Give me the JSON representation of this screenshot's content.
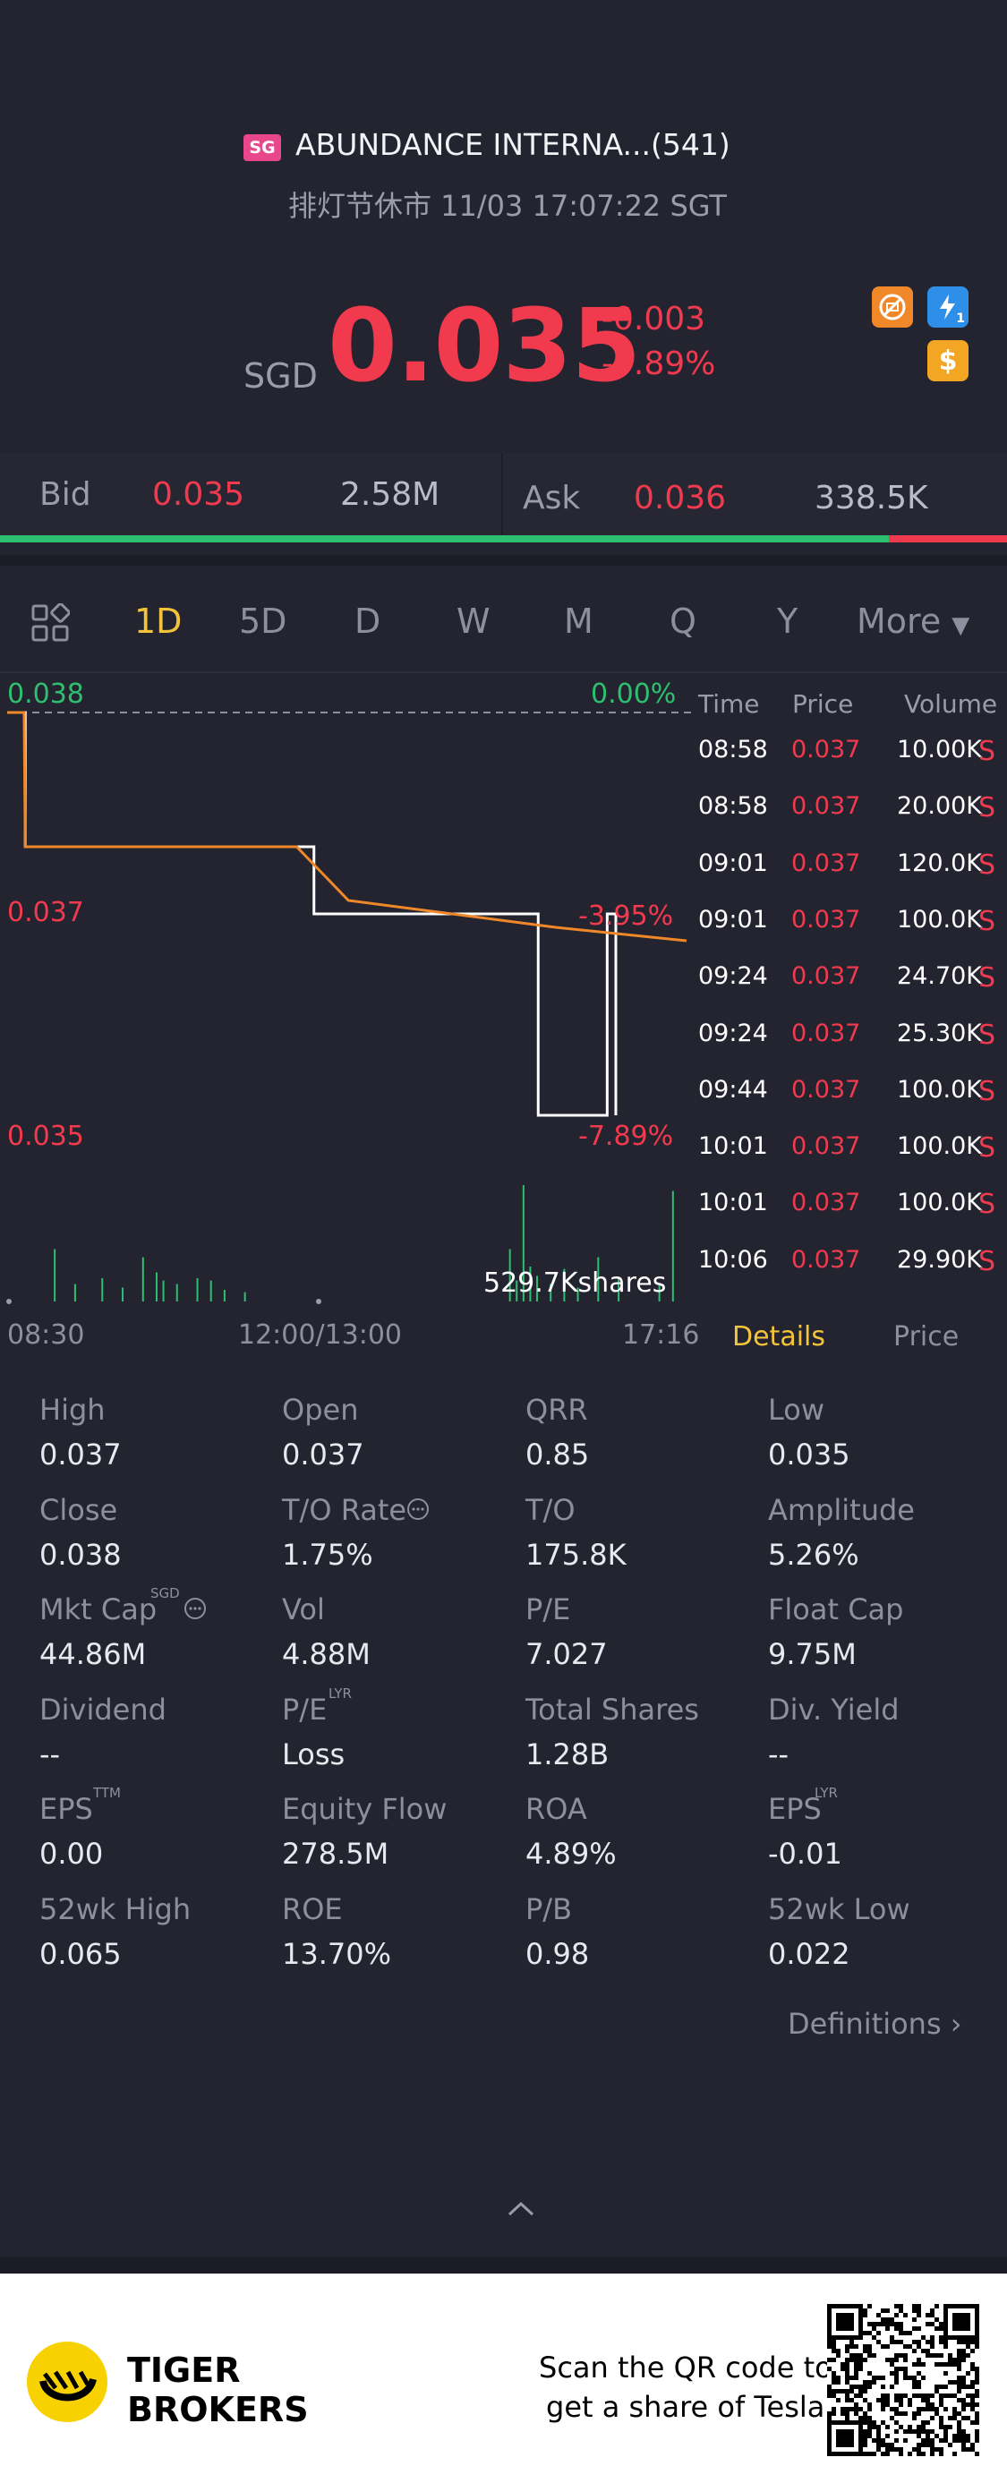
{
  "header": {
    "market_badge": "SG",
    "stock_name": "ABUNDANCE INTERNA...(541)",
    "market_status": "排灯节休市 11/03 17:07:22 SGT",
    "currency": "SGD",
    "price": "0.035",
    "change": "-0.003",
    "change_pct": "-7.89%",
    "icons": [
      "no-short-icon",
      "level1-icon",
      "dollar-icon"
    ],
    "level_label": "1",
    "dollar_symbol": "$"
  },
  "bidask": {
    "bid_label": "Bid",
    "bid_price": "0.035",
    "bid_size": "2.58M",
    "ask_label": "Ask",
    "ask_price": "0.036",
    "ask_size": "338.5K",
    "bid_ratio": 0.883
  },
  "tabs": [
    "1D",
    "5D",
    "D",
    "W",
    "M",
    "Q",
    "Y"
  ],
  "more_label": "More",
  "chart": {
    "y_top": "0.038",
    "y_mid": "0.037",
    "y_bottom": "0.035",
    "pct_top": "0.00%",
    "pct_mid": "-3.95%",
    "pct_bottom": "-7.89%",
    "volume_label": "529.7Kshares",
    "x_start": "08:30",
    "x_mid": "12:00/13:00",
    "x_end": "17:16"
  },
  "chart_data": {
    "type": "line",
    "title": "",
    "series": [
      {
        "x": [
          "08:30",
          "08:45",
          "08:46",
          "13:30",
          "13:40",
          "14:30",
          "15:40",
          "15:50",
          "16:00",
          "16:30",
          "16:35"
        ],
        "values": [
          0.038,
          0.038,
          0.037,
          0.037,
          0.0365,
          0.0365,
          0.0365,
          0.035,
          0.035,
          0.0365,
          0.035
        ]
      },
      {
        "x": [
          "08:30",
          "08:45",
          "08:46",
          "13:30",
          "13:45",
          "14:00",
          "15:00",
          "16:00",
          "17:16"
        ],
        "values": [
          0.038,
          0.038,
          0.037,
          0.037,
          0.0368,
          0.0366,
          0.0365,
          0.0364,
          0.0363
        ]
      }
    ],
    "ylim": [
      0.035,
      0.038
    ],
    "volume_bars": [
      {
        "x": 0.07,
        "v": 0.45
      },
      {
        "x": 0.1,
        "v": 0.15
      },
      {
        "x": 0.14,
        "v": 0.2
      },
      {
        "x": 0.17,
        "v": 0.12
      },
      {
        "x": 0.2,
        "v": 0.38
      },
      {
        "x": 0.22,
        "v": 0.25
      },
      {
        "x": 0.23,
        "v": 0.18
      },
      {
        "x": 0.25,
        "v": 0.15
      },
      {
        "x": 0.28,
        "v": 0.2
      },
      {
        "x": 0.3,
        "v": 0.18
      },
      {
        "x": 0.32,
        "v": 0.1
      },
      {
        "x": 0.35,
        "v": 0.08
      },
      {
        "x": 0.74,
        "v": 0.45
      },
      {
        "x": 0.75,
        "v": 0.18
      },
      {
        "x": 0.76,
        "v": 1.0
      },
      {
        "x": 0.77,
        "v": 0.3
      },
      {
        "x": 0.78,
        "v": 0.22
      },
      {
        "x": 0.8,
        "v": 0.15
      },
      {
        "x": 0.82,
        "v": 0.28
      },
      {
        "x": 0.84,
        "v": 0.12
      },
      {
        "x": 0.87,
        "v": 0.38
      },
      {
        "x": 0.9,
        "v": 0.2
      },
      {
        "x": 0.96,
        "v": 0.15
      },
      {
        "x": 0.98,
        "v": 0.95
      }
    ]
  },
  "ticks": {
    "headers": {
      "time": "Time",
      "price": "Price",
      "volume": "Volume"
    },
    "rows": [
      {
        "time": "08:58",
        "price": "0.037",
        "volume": "10.00K",
        "side": "S"
      },
      {
        "time": "08:58",
        "price": "0.037",
        "volume": "20.00K",
        "side": "S"
      },
      {
        "time": "09:01",
        "price": "0.037",
        "volume": "120.0K",
        "side": "S"
      },
      {
        "time": "09:01",
        "price": "0.037",
        "volume": "100.0K",
        "side": "S"
      },
      {
        "time": "09:24",
        "price": "0.037",
        "volume": "24.70K",
        "side": "S"
      },
      {
        "time": "09:24",
        "price": "0.037",
        "volume": "25.30K",
        "side": "S"
      },
      {
        "time": "09:44",
        "price": "0.037",
        "volume": "100.0K",
        "side": "S"
      },
      {
        "time": "10:01",
        "price": "0.037",
        "volume": "100.0K",
        "side": "S"
      },
      {
        "time": "10:01",
        "price": "0.037",
        "volume": "100.0K",
        "side": "S"
      },
      {
        "time": "10:06",
        "price": "0.037",
        "volume": "29.90K",
        "side": "S"
      }
    ],
    "tab_details": "Details",
    "tab_price": "Price"
  },
  "stats": [
    [
      {
        "label": "High",
        "value": "0.037"
      },
      {
        "label": "Open",
        "value": "0.037"
      },
      {
        "label": "QRR",
        "value": "0.85"
      },
      {
        "label": "Low",
        "value": "0.035"
      }
    ],
    [
      {
        "label": "Close",
        "value": "0.038"
      },
      {
        "label": "T/O Rate",
        "value": "1.75%"
      },
      {
        "label": "T/O",
        "value": "175.8K"
      },
      {
        "label": "Amplitude",
        "value": "5.26%"
      }
    ],
    [
      {
        "label": "Mkt Cap",
        "value": "44.86M",
        "sup": "SGD"
      },
      {
        "label": "Vol",
        "value": "4.88M"
      },
      {
        "label": "P/E",
        "value": "7.027"
      },
      {
        "label": "Float Cap",
        "value": "9.75M"
      }
    ],
    [
      {
        "label": "Dividend",
        "value": "--"
      },
      {
        "label": "P/E",
        "value": "Loss",
        "sup": "LYR"
      },
      {
        "label": "Total Shares",
        "value": "1.28B"
      },
      {
        "label": "Div. Yield",
        "value": "--"
      }
    ],
    [
      {
        "label": "EPS",
        "value": "0.00",
        "sup": "TTM"
      },
      {
        "label": "Equity Flow",
        "value": "278.5M"
      },
      {
        "label": "ROA",
        "value": "4.89%"
      },
      {
        "label": "EPS",
        "value": "-0.01",
        "sup": "LYR"
      }
    ],
    [
      {
        "label": "52wk High",
        "value": "0.065"
      },
      {
        "label": "ROE",
        "value": "13.70%"
      },
      {
        "label": "P/B",
        "value": "0.98"
      },
      {
        "label": "52wk Low",
        "value": "0.022"
      }
    ]
  ],
  "definitions_label": "Definitions",
  "footer": {
    "brand_line1": "TIGER",
    "brand_line2": "BROKERS",
    "promo_line1": "Scan the QR code to",
    "promo_line2": "get a share of Tesla"
  }
}
